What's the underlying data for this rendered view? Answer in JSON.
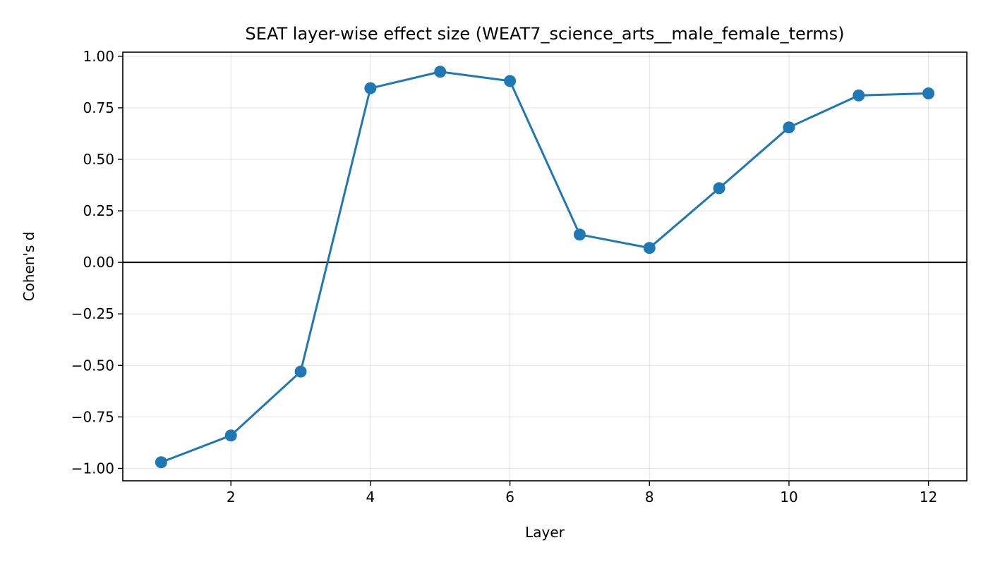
{
  "chart_data": {
    "type": "line",
    "title": "SEAT layer-wise effect size (WEAT7_science_arts__male_female_terms)",
    "xlabel": "Layer",
    "ylabel": "Cohen's d",
    "x": [
      1,
      2,
      3,
      4,
      5,
      6,
      7,
      8,
      9,
      10,
      11,
      12
    ],
    "series": [
      {
        "values": [
          -0.97,
          -0.84,
          -0.53,
          0.845,
          0.925,
          0.88,
          0.135,
          0.07,
          0.36,
          0.655,
          0.81,
          0.82
        ],
        "color": "#1f77b4",
        "marker": "circle"
      }
    ],
    "xlim": [
      0.45,
      12.55
    ],
    "ylim": [
      -1.06,
      1.02
    ],
    "xticks": [
      2,
      4,
      6,
      8,
      10,
      12
    ],
    "xtick_labels": [
      "2",
      "4",
      "6",
      "8",
      "10",
      "12"
    ],
    "yticks": [
      1.0,
      0.75,
      0.5,
      0.25,
      0.0,
      -0.25,
      -0.5,
      -0.75,
      -1.0
    ],
    "ytick_labels": [
      "1.00",
      "0.75",
      "0.50",
      "0.25",
      "0.00",
      "−0.25",
      "−0.50",
      "−0.75",
      "−1.00"
    ],
    "reference_line_y": 0,
    "grid": true,
    "legend": false
  }
}
